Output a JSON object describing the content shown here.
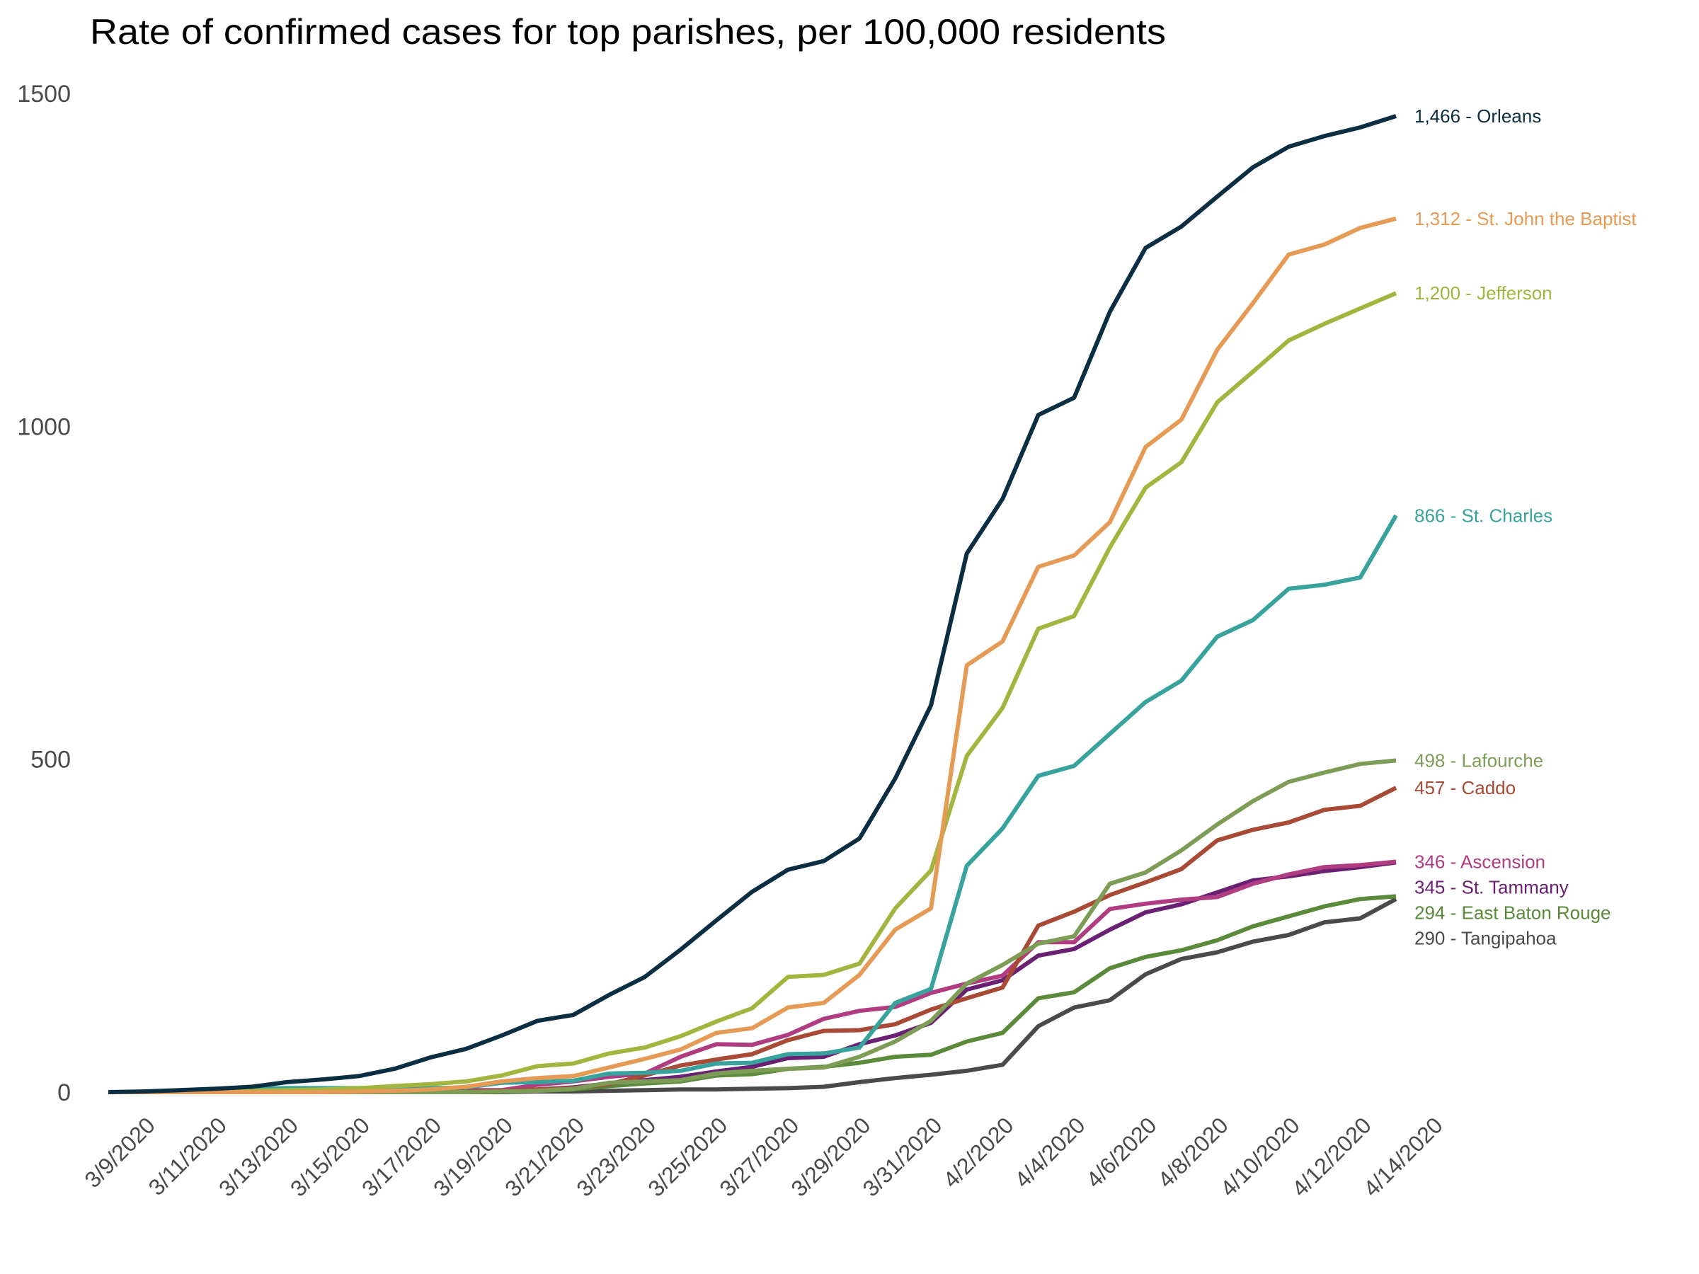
{
  "chart_data": {
    "type": "line",
    "title": "Rate of confirmed cases for top parishes, per 100,000 residents",
    "xlabel": "",
    "ylabel": "",
    "ylim": [
      0,
      1500
    ],
    "yticks": [
      0,
      500,
      1000,
      1500
    ],
    "ytick_labels": [
      "0",
      "500",
      "1000",
      "1500"
    ],
    "grid": false,
    "legend": "direct labels at line ends (right)",
    "x": [
      "3/9/2020",
      "3/10/2020",
      "3/11/2020",
      "3/12/2020",
      "3/13/2020",
      "3/14/2020",
      "3/15/2020",
      "3/16/2020",
      "3/17/2020",
      "3/18/2020",
      "3/19/2020",
      "3/20/2020",
      "3/21/2020",
      "3/22/2020",
      "3/23/2020",
      "3/24/2020",
      "3/25/2020",
      "3/26/2020",
      "3/27/2020",
      "3/28/2020",
      "3/29/2020",
      "3/30/2020",
      "3/31/2020",
      "4/1/2020",
      "4/2/2020",
      "4/3/2020",
      "4/4/2020",
      "4/5/2020",
      "4/6/2020",
      "4/7/2020",
      "4/8/2020",
      "4/9/2020",
      "4/10/2020",
      "4/11/2020",
      "4/12/2020",
      "4/13/2020",
      "4/14/2020"
    ],
    "xtick_labels": [
      "3/9/2020",
      "3/11/2020",
      "3/13/2020",
      "3/15/2020",
      "3/17/2020",
      "3/19/2020",
      "3/21/2020",
      "3/23/2020",
      "3/25/2020",
      "3/27/2020",
      "3/29/2020",
      "3/31/2020",
      "4/2/2020",
      "4/4/2020",
      "4/6/2020",
      "4/8/2020",
      "4/10/2020",
      "4/12/2020",
      "4/14/2020"
    ],
    "series": [
      {
        "name": "Orleans",
        "label": "1,466 - Orleans",
        "color": "#0b2e42",
        "values": [
          0,
          1,
          3,
          5,
          8,
          15,
          19,
          24,
          35,
          52,
          65,
          85,
          107,
          116,
          146,
          173,
          214,
          258,
          301,
          334,
          347,
          381,
          471,
          581,
          809,
          891,
          1017,
          1043,
          1172,
          1268,
          1300,
          1345,
          1389,
          1420,
          1436,
          1449,
          1466
        ]
      },
      {
        "name": "St. John the Baptist",
        "label": "1,312 - St. John the Baptist",
        "color": "#e59a55",
        "values": [
          0,
          0,
          0,
          0,
          0,
          0,
          0,
          1,
          2,
          4,
          8,
          16,
          21,
          24,
          37,
          50,
          64,
          89,
          96,
          127,
          134,
          176,
          244,
          276,
          641,
          677,
          789,
          806,
          856,
          969,
          1010,
          1115,
          1185,
          1258,
          1273,
          1298,
          1312
        ]
      },
      {
        "name": "Jefferson",
        "label": "1,200 - Jefferson",
        "color": "#a3b53f",
        "values": [
          0,
          0,
          0,
          1,
          2,
          3,
          4,
          6,
          9,
          12,
          16,
          25,
          39,
          43,
          58,
          67,
          84,
          106,
          126,
          173,
          176,
          193,
          276,
          333,
          505,
          577,
          696,
          715,
          818,
          908,
          946,
          1036,
          1082,
          1129,
          1154,
          1177,
          1200
        ]
      },
      {
        "name": "St. Charles",
        "label": "866 - St. Charles",
        "color": "#38a39c",
        "values": [
          0,
          0,
          0,
          2,
          5,
          6,
          6,
          6,
          6,
          6,
          7,
          14,
          15,
          17,
          28,
          29,
          32,
          43,
          44,
          57,
          58,
          67,
          134,
          155,
          340,
          396,
          475,
          490,
          538,
          586,
          618,
          684,
          709,
          756,
          762,
          773,
          866
        ]
      },
      {
        "name": "Lafourche",
        "label": "498 - Lafourche",
        "color": "#7d9d57",
        "values": [
          0,
          0,
          0,
          0,
          0,
          0,
          0,
          0,
          0,
          0,
          0,
          1,
          2,
          5,
          14,
          16,
          18,
          28,
          32,
          35,
          37,
          53,
          76,
          107,
          163,
          191,
          223,
          234,
          313,
          330,
          363,
          402,
          437,
          466,
          480,
          493,
          498
        ]
      },
      {
        "name": "Caddo",
        "label": "457 - Caddo",
        "color": "#a84a36",
        "values": [
          0,
          0,
          0,
          0,
          0,
          0,
          0,
          0,
          0,
          0,
          1,
          2,
          4,
          6,
          12,
          25,
          40,
          49,
          57,
          78,
          92,
          93,
          102,
          124,
          141,
          157,
          250,
          271,
          296,
          315,
          335,
          378,
          394,
          405,
          424,
          430,
          457
        ]
      },
      {
        "name": "Ascension",
        "label": "346 - Ascension",
        "color": "#b03d82",
        "values": [
          0,
          0,
          0,
          0,
          0,
          0,
          0,
          0,
          0,
          0,
          3,
          3,
          11,
          16,
          23,
          28,
          53,
          72,
          71,
          86,
          110,
          122,
          128,
          149,
          163,
          175,
          225,
          225,
          275,
          283,
          289,
          293,
          313,
          327,
          338,
          341,
          346
        ]
      },
      {
        "name": "St. Tammany",
        "label": "345 - St. Tammany",
        "color": "#6b2173",
        "values": [
          0,
          0,
          0,
          0,
          0,
          0,
          0,
          0,
          0,
          0,
          1,
          2,
          4,
          7,
          13,
          18,
          23,
          31,
          38,
          51,
          53,
          72,
          85,
          104,
          154,
          168,
          205,
          215,
          244,
          270,
          282,
          300,
          318,
          324,
          332,
          338,
          345
        ]
      },
      {
        "name": "East Baton Rouge",
        "label": "294 - East Baton Rouge",
        "color": "#5a8a3a",
        "values": [
          0,
          0,
          0,
          0,
          0,
          0,
          0,
          0,
          0,
          0,
          0,
          1,
          2,
          4,
          9,
          13,
          16,
          25,
          27,
          35,
          38,
          44,
          53,
          56,
          76,
          89,
          141,
          150,
          186,
          203,
          213,
          228,
          249,
          264,
          279,
          290,
          294
        ]
      },
      {
        "name": "Tangipahoa",
        "label": "290 - Tangipahoa",
        "color": "#4a4a4a",
        "values": [
          0,
          0,
          0,
          0,
          0,
          0,
          0,
          0,
          0,
          0,
          0,
          0,
          1,
          1,
          2,
          3,
          4,
          4,
          5,
          6,
          8,
          15,
          21,
          26,
          32,
          41,
          99,
          127,
          138,
          177,
          200,
          210,
          226,
          236,
          255,
          261,
          290
        ]
      }
    ]
  }
}
